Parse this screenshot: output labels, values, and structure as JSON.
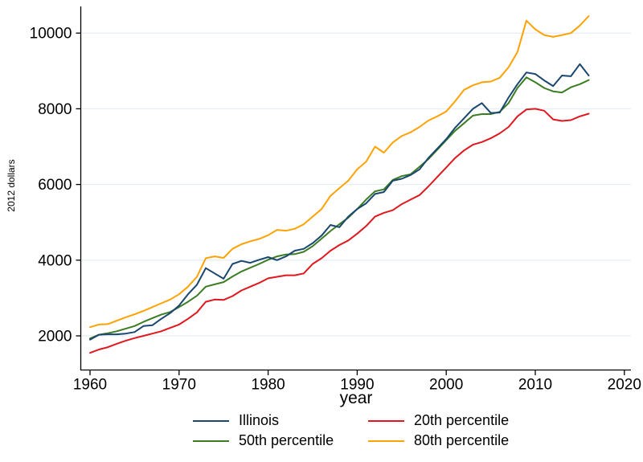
{
  "figure": {
    "background": "#ffffff",
    "axis_color": "#000000",
    "gridline_color": "#e7eef5"
  },
  "chart_data": {
    "type": "line",
    "title": "",
    "xlabel": "year",
    "ylabel": "2012 dollars",
    "x_ticks": [
      1960,
      1970,
      1980,
      1990,
      2000,
      2010,
      2020
    ],
    "y_ticks": [
      2000,
      4000,
      6000,
      8000,
      10000
    ],
    "xlim": [
      1959,
      2021
    ],
    "ylim": [
      1100,
      10700
    ],
    "grid": "horizontal",
    "legend_position": "bottom",
    "x": [
      1960,
      1961,
      1962,
      1963,
      1964,
      1965,
      1966,
      1967,
      1968,
      1969,
      1970,
      1971,
      1972,
      1973,
      1974,
      1975,
      1976,
      1977,
      1978,
      1979,
      1980,
      1981,
      1982,
      1983,
      1984,
      1985,
      1986,
      1987,
      1988,
      1989,
      1990,
      1991,
      1992,
      1993,
      1994,
      1995,
      1996,
      1997,
      1998,
      1999,
      2000,
      2001,
      2002,
      2003,
      2004,
      2005,
      2006,
      2007,
      2008,
      2009,
      2010,
      2011,
      2012,
      2013,
      2014,
      2015,
      2016
    ],
    "series": [
      {
        "name": "Illinois",
        "color": "#1a476f",
        "values": [
          1900,
          2030,
          2040,
          2040,
          2060,
          2100,
          2260,
          2280,
          2450,
          2600,
          2800,
          3100,
          3350,
          3790,
          3650,
          3510,
          3900,
          3980,
          3930,
          4010,
          4080,
          4000,
          4100,
          4250,
          4300,
          4450,
          4650,
          4930,
          4870,
          5150,
          5350,
          5500,
          5750,
          5800,
          6100,
          6150,
          6250,
          6400,
          6700,
          6950,
          7200,
          7500,
          7750,
          8000,
          8150,
          7890,
          7900,
          8300,
          8650,
          8960,
          8920,
          8750,
          8600,
          8880,
          8860,
          9180,
          8880
        ]
      },
      {
        "name": "20th percentile",
        "color": "#e0181e",
        "values": [
          1550,
          1640,
          1700,
          1790,
          1870,
          1940,
          2000,
          2060,
          2120,
          2210,
          2300,
          2450,
          2620,
          2900,
          2960,
          2950,
          3050,
          3200,
          3300,
          3400,
          3520,
          3560,
          3600,
          3600,
          3650,
          3900,
          4050,
          4250,
          4400,
          4520,
          4700,
          4900,
          5150,
          5250,
          5320,
          5480,
          5600,
          5720,
          5950,
          6200,
          6450,
          6700,
          6900,
          7050,
          7120,
          7220,
          7350,
          7520,
          7800,
          7980,
          8000,
          7950,
          7720,
          7680,
          7700,
          7800,
          7870
        ]
      },
      {
        "name": "50th percentile",
        "color": "#3b7d23",
        "values": [
          1930,
          2030,
          2070,
          2120,
          2190,
          2260,
          2370,
          2470,
          2560,
          2630,
          2760,
          2900,
          3060,
          3300,
          3360,
          3420,
          3570,
          3700,
          3800,
          3900,
          4010,
          4100,
          4150,
          4160,
          4220,
          4370,
          4570,
          4770,
          4950,
          5120,
          5350,
          5600,
          5820,
          5870,
          6120,
          6220,
          6270,
          6470,
          6670,
          6920,
          7170,
          7420,
          7620,
          7820,
          7860,
          7860,
          7920,
          8150,
          8550,
          8830,
          8700,
          8550,
          8460,
          8430,
          8570,
          8650,
          8760
        ]
      },
      {
        "name": "80th percentile",
        "color": "#ffa200",
        "values": [
          2230,
          2300,
          2310,
          2400,
          2490,
          2570,
          2660,
          2760,
          2860,
          2960,
          3100,
          3300,
          3560,
          4050,
          4100,
          4060,
          4300,
          4420,
          4500,
          4560,
          4660,
          4800,
          4780,
          4830,
          4950,
          5150,
          5350,
          5700,
          5900,
          6100,
          6400,
          6600,
          7000,
          6840,
          7110,
          7280,
          7380,
          7520,
          7690,
          7800,
          7930,
          8200,
          8500,
          8620,
          8700,
          8720,
          8820,
          9100,
          9500,
          10330,
          10100,
          9950,
          9900,
          9950,
          10000,
          10200,
          10450
        ]
      }
    ]
  }
}
